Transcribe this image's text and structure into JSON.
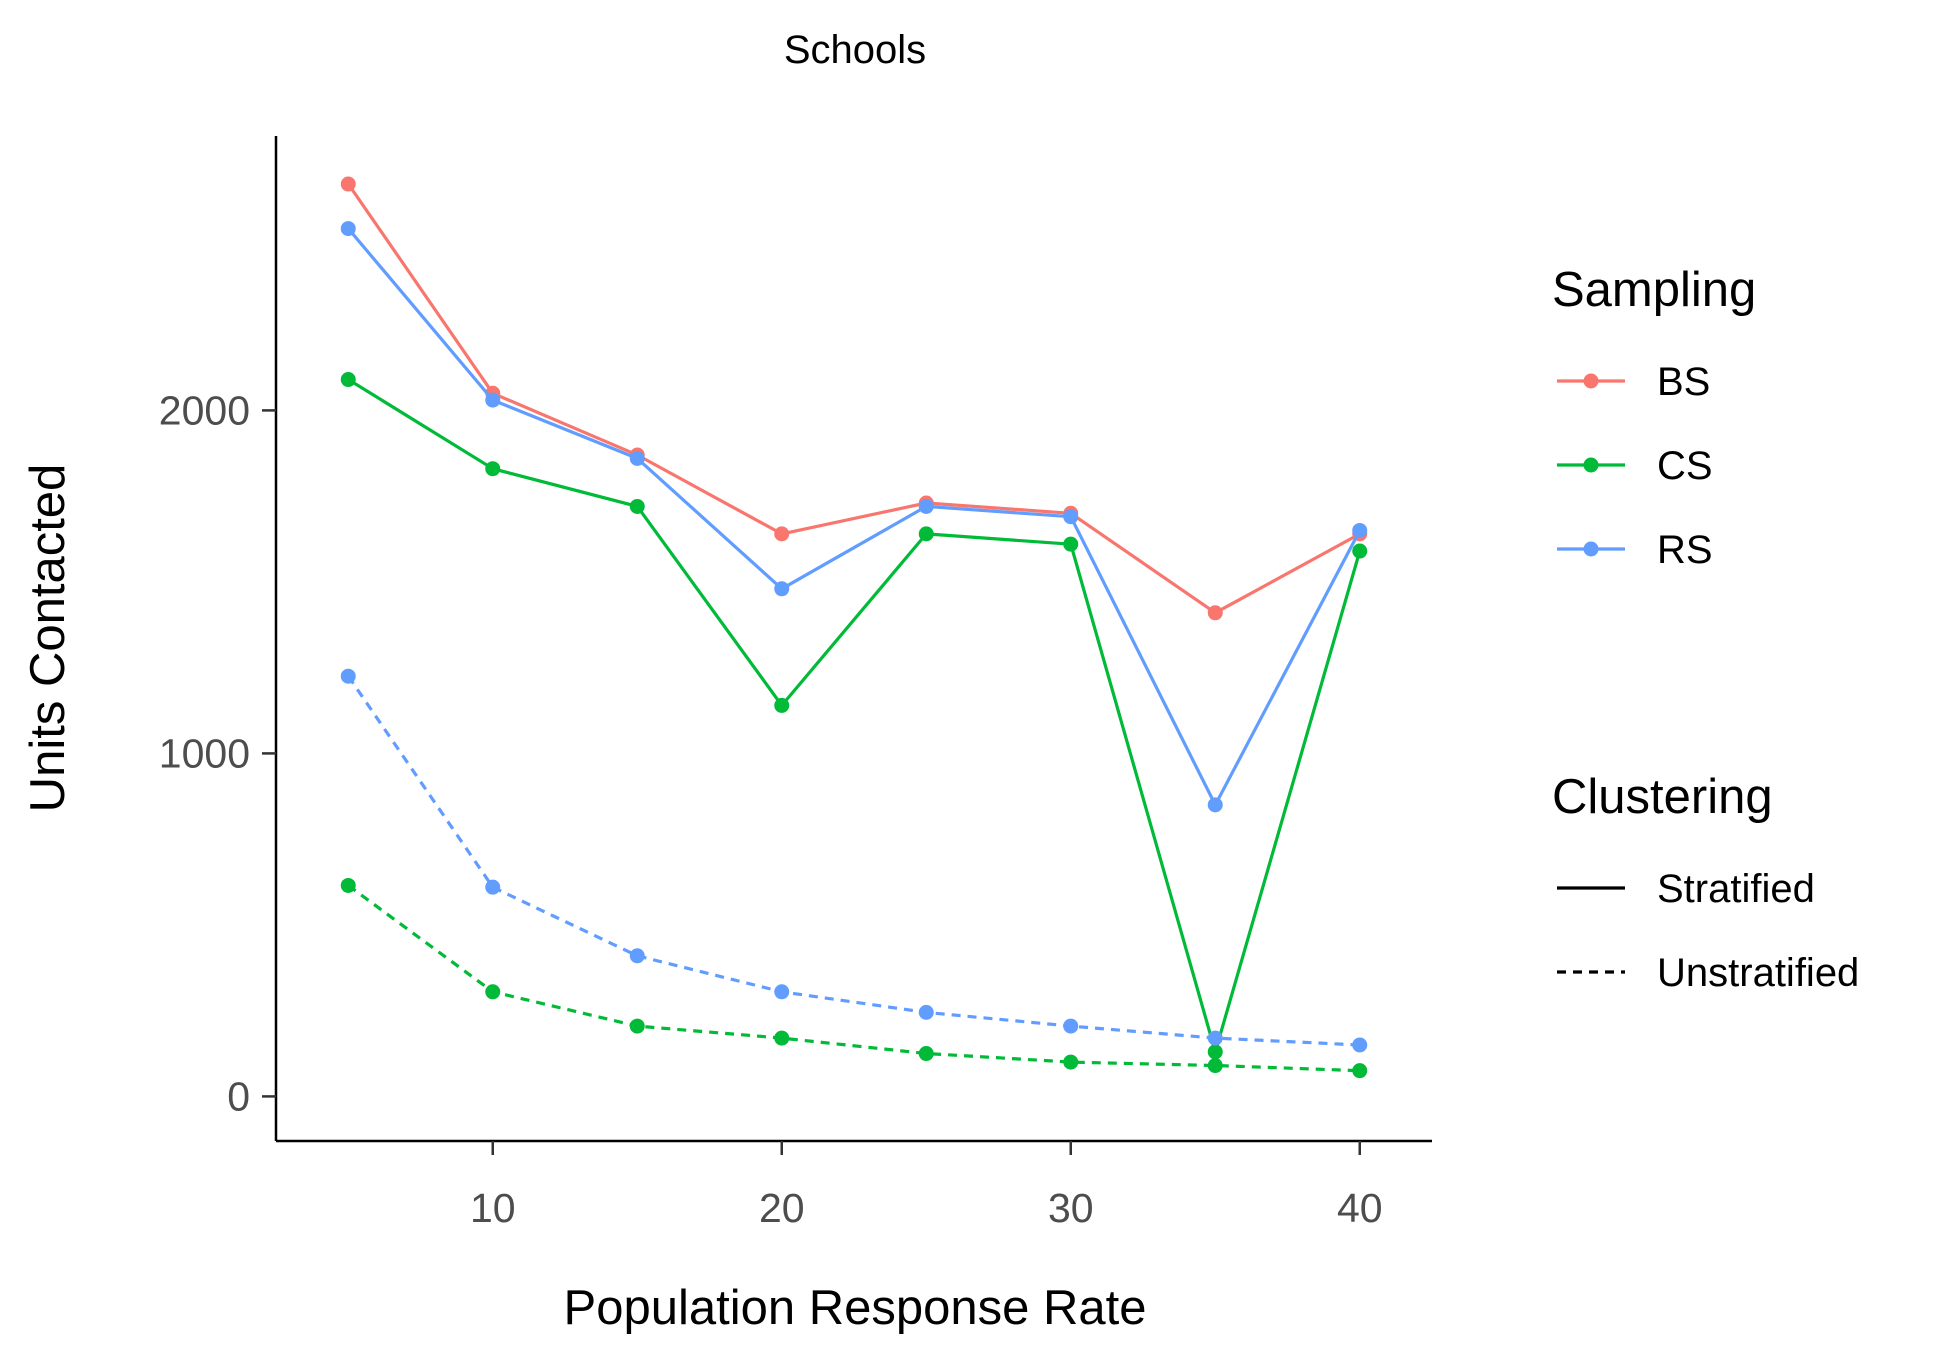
{
  "chart_data": {
    "type": "line",
    "title": "Schools",
    "xlabel": "Population Response Rate",
    "ylabel": "Units Contacted",
    "xlim": [
      2.5,
      42.5
    ],
    "ylim": [
      -130,
      2800
    ],
    "x_ticks": [
      10,
      20,
      30,
      40
    ],
    "y_ticks": [
      0,
      1000,
      2000
    ],
    "grid": false,
    "legend_placement": "right",
    "x": [
      5,
      10,
      15,
      20,
      25,
      30,
      35,
      40
    ],
    "sampling_legend": {
      "title": "Sampling",
      "entries": [
        {
          "label": "BS",
          "color": "#F8766D"
        },
        {
          "label": "CS",
          "color": "#00BA38"
        },
        {
          "label": "RS",
          "color": "#619CFF"
        }
      ]
    },
    "clustering_legend": {
      "title": "Clustering",
      "entries": [
        {
          "label": "Stratified",
          "linetype": "solid"
        },
        {
          "label": "Unstratified",
          "linetype": "dashed"
        }
      ]
    },
    "series": [
      {
        "sampling": "BS",
        "clustering": "Stratified",
        "color": "#F8766D",
        "dashed": false,
        "values": [
          2660,
          2050,
          1870,
          1640,
          1730,
          1700,
          1410,
          1640
        ]
      },
      {
        "sampling": "CS",
        "clustering": "Stratified",
        "color": "#00BA38",
        "dashed": false,
        "values": [
          2090,
          1830,
          1720,
          1140,
          1640,
          1610,
          130,
          1590
        ]
      },
      {
        "sampling": "RS",
        "clustering": "Stratified",
        "color": "#619CFF",
        "dashed": false,
        "values": [
          2530,
          2030,
          1860,
          1480,
          1720,
          1690,
          850,
          1650
        ]
      },
      {
        "sampling": "CS",
        "clustering": "Unstratified",
        "color": "#00BA38",
        "dashed": true,
        "values": [
          615,
          305,
          205,
          170,
          125,
          100,
          90,
          75
        ]
      },
      {
        "sampling": "RS",
        "clustering": "Unstratified",
        "color": "#619CFF",
        "dashed": true,
        "values": [
          1225,
          610,
          410,
          305,
          245,
          205,
          170,
          150
        ]
      }
    ]
  }
}
